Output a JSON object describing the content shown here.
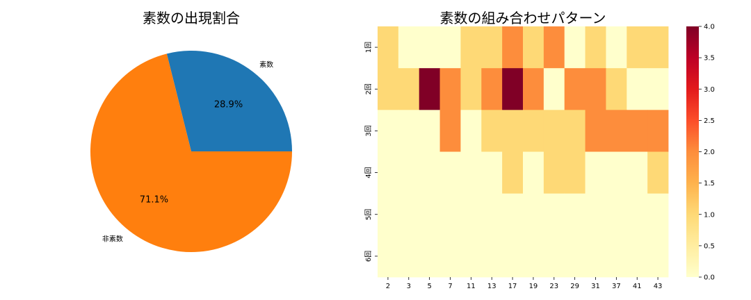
{
  "chart_data": [
    {
      "type": "pie",
      "title": "素数の出現割合",
      "labels": [
        "素数",
        "非素数"
      ],
      "values": [
        28.9,
        71.1
      ],
      "percent_labels": [
        "28.9%",
        "71.1%"
      ],
      "colors": [
        "#1f77b4",
        "#ff7f0e"
      ]
    },
    {
      "type": "heatmap",
      "title": "素数の組み合わせパターン",
      "x_categories": [
        "2",
        "3",
        "5",
        "7",
        "11",
        "13",
        "17",
        "19",
        "23",
        "29",
        "31",
        "37",
        "41",
        "43"
      ],
      "y_categories": [
        "1回",
        "2回",
        "3回",
        "4回",
        "5回",
        "6回"
      ],
      "values": [
        [
          1,
          0,
          0,
          0,
          1,
          1,
          2,
          1,
          2,
          0,
          1,
          0,
          1,
          1
        ],
        [
          1,
          1,
          4,
          2,
          1,
          2,
          4,
          2,
          0,
          2,
          2,
          1,
          0,
          0
        ],
        [
          0,
          0,
          0,
          2,
          0,
          1,
          1,
          1,
          1,
          1,
          2,
          2,
          2,
          2
        ],
        [
          0,
          0,
          0,
          0,
          0,
          0,
          1,
          0,
          1,
          1,
          0,
          0,
          0,
          1
        ],
        [
          0,
          0,
          0,
          0,
          0,
          0,
          0,
          0,
          0,
          0,
          0,
          0,
          0,
          0
        ],
        [
          0,
          0,
          0,
          0,
          0,
          0,
          0,
          0,
          0,
          0,
          0,
          0,
          0,
          0
        ]
      ],
      "colorbar": {
        "min": 0,
        "max": 4,
        "ticks": [
          "0.0",
          "0.5",
          "1.0",
          "1.5",
          "2.0",
          "2.5",
          "3.0",
          "3.5",
          "4.0"
        ],
        "colormap": "YlOrRd"
      }
    }
  ]
}
